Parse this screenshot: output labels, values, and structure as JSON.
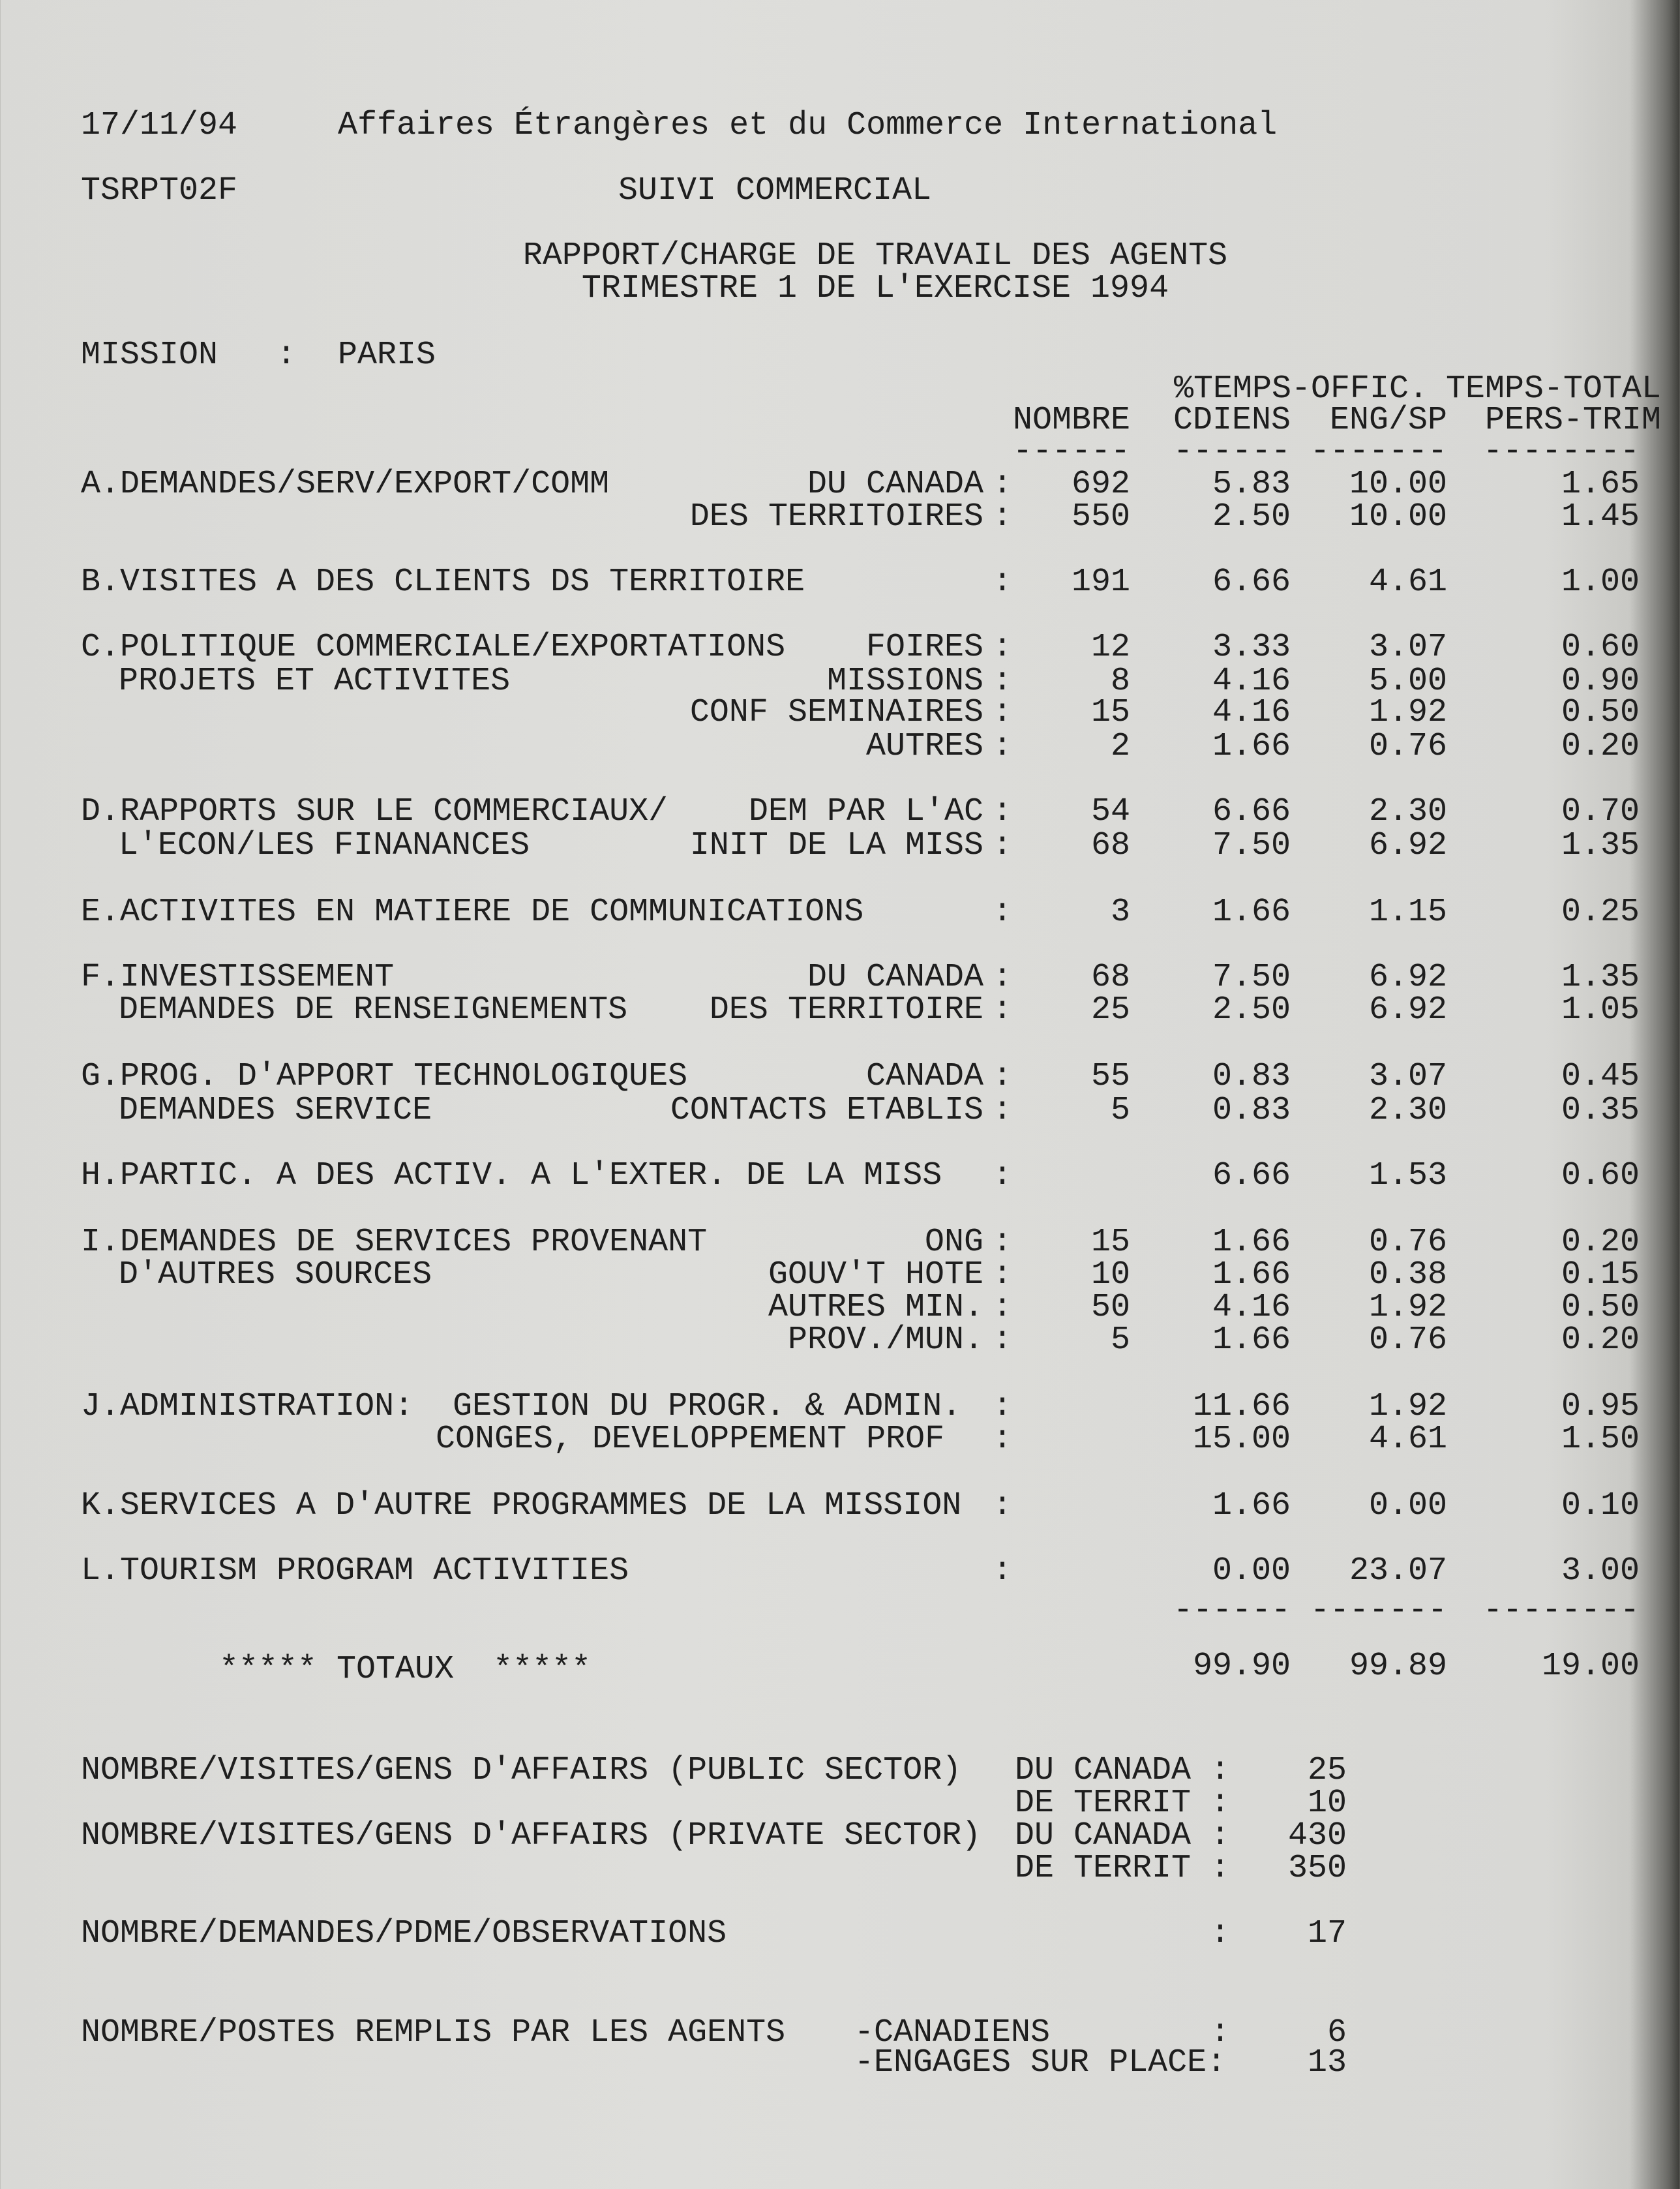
{
  "header": {
    "date": "17/11/94",
    "department": "Affaires Étrangères et du Commerce International",
    "report_code": "TSRPT02F",
    "system": "SUIVI COMMERCIAL",
    "title_line1": "RAPPORT/CHARGE DE TRAVAIL DES AGENTS",
    "title_line2": "TRIMESTRE 1 DE L'EXERCISE 1994",
    "mission_label": "MISSION   :",
    "mission_value": "PARIS"
  },
  "columns": {
    "group1": "%TEMPS-OFFIC.",
    "group2": "TEMPS-TOTAL",
    "nombre": "NOMBRE",
    "cdiens": "CDIENS",
    "engsp": "ENG/SP",
    "pers": "PERS-TRIM",
    "dash6": "------",
    "dash7": "-------",
    "dash8": "--------"
  },
  "rows": [
    {
      "label": "A.DEMANDES/SERV/EXPORT/COMM",
      "sub": "DU CANADA",
      "nombre": "692",
      "cdiens": "5.83",
      "engsp": "10.00",
      "pers": "1.65"
    },
    {
      "label": "",
      "sub": "DES TERRITOIRES",
      "nombre": "550",
      "cdiens": "2.50",
      "engsp": "10.00",
      "pers": "1.45"
    },
    {
      "label": "B.VISITES A DES CLIENTS DS TERRITOIRE",
      "sub": "",
      "nombre": "191",
      "cdiens": "6.66",
      "engsp": "4.61",
      "pers": "1.00"
    },
    {
      "label": "C.POLITIQUE COMMERCIALE/EXPORTATIONS",
      "sub": "FOIRES",
      "nombre": "12",
      "cdiens": "3.33",
      "engsp": "3.07",
      "pers": "0.60"
    },
    {
      "label": "PROJETS ET ACTIVITES",
      "indent": true,
      "sub": "MISSIONS",
      "nombre": "8",
      "cdiens": "4.16",
      "engsp": "5.00",
      "pers": "0.90"
    },
    {
      "label": "",
      "sub": "CONF SEMINAIRES",
      "nombre": "15",
      "cdiens": "4.16",
      "engsp": "1.92",
      "pers": "0.50"
    },
    {
      "label": "",
      "sub": "AUTRES",
      "nombre": "2",
      "cdiens": "1.66",
      "engsp": "0.76",
      "pers": "0.20"
    },
    {
      "label": "D.RAPPORTS SUR LE COMMERCIAUX/",
      "sub": "DEM PAR L'AC",
      "nombre": "54",
      "cdiens": "6.66",
      "engsp": "2.30",
      "pers": "0.70"
    },
    {
      "label": "L'ECON/LES FINANANCES",
      "indent": true,
      "sub": "INIT DE LA MISS",
      "nombre": "68",
      "cdiens": "7.50",
      "engsp": "6.92",
      "pers": "1.35"
    },
    {
      "label": "E.ACTIVITES EN MATIERE DE COMMUNICATIONS",
      "sub": "",
      "nombre": "3",
      "cdiens": "1.66",
      "engsp": "1.15",
      "pers": "0.25"
    },
    {
      "label": "F.INVESTISSEMENT",
      "sub": "DU CANADA",
      "nombre": "68",
      "cdiens": "7.50",
      "engsp": "6.92",
      "pers": "1.35"
    },
    {
      "label": "DEMANDES DE RENSEIGNEMENTS",
      "indent": true,
      "sub": "DES TERRITOIRE",
      "nombre": "25",
      "cdiens": "2.50",
      "engsp": "6.92",
      "pers": "1.05"
    },
    {
      "label": "G.PROG. D'APPORT TECHNOLOGIQUES",
      "sub": "CANADA",
      "nombre": "55",
      "cdiens": "0.83",
      "engsp": "3.07",
      "pers": "0.45"
    },
    {
      "label": "DEMANDES SERVICE",
      "indent": true,
      "sub": "CONTACTS ETABLIS",
      "nombre": "5",
      "cdiens": "0.83",
      "engsp": "2.30",
      "pers": "0.35"
    },
    {
      "label": "H.PARTIC. A DES ACTIV. A L'EXTER. DE LA MISS",
      "sub": "",
      "nombre": "",
      "cdiens": "6.66",
      "engsp": "1.53",
      "pers": "0.60"
    },
    {
      "label": "I.DEMANDES DE SERVICES PROVENANT",
      "sub": "ONG",
      "nombre": "15",
      "cdiens": "1.66",
      "engsp": "0.76",
      "pers": "0.20"
    },
    {
      "label": "D'AUTRES SOURCES",
      "indent": true,
      "sub": "GOUV'T HOTE",
      "nombre": "10",
      "cdiens": "1.66",
      "engsp": "0.38",
      "pers": "0.15"
    },
    {
      "label": "",
      "sub": "AUTRES MIN.",
      "nombre": "50",
      "cdiens": "4.16",
      "engsp": "1.92",
      "pers": "0.50"
    },
    {
      "label": "",
      "sub": "PROV./MUN.",
      "nombre": "5",
      "cdiens": "1.66",
      "engsp": "0.76",
      "pers": "0.20"
    },
    {
      "label": "J.ADMINISTRATION:  GESTION DU PROGR. & ADMIN.",
      "sub": "",
      "nombre": "",
      "cdiens": "11.66",
      "engsp": "1.92",
      "pers": "0.95"
    },
    {
      "label": "CONGES, DEVELOPPEMENT PROF",
      "sub": "",
      "indent2": true,
      "nombre": "",
      "cdiens": "15.00",
      "engsp": "4.61",
      "pers": "1.50"
    },
    {
      "label": "K.SERVICES A D'AUTRE PROGRAMMES DE LA MISSION",
      "sub": "",
      "nombre": "",
      "cdiens": "1.66",
      "engsp": "0.00",
      "pers": "0.10"
    },
    {
      "label": "L.TOURISM PROGRAM ACTIVITIES",
      "sub": "",
      "nombre": "",
      "cdiens": "0.00",
      "engsp": "23.07",
      "pers": "3.00"
    }
  ],
  "totals": {
    "label": "***** TOTAUX  *****",
    "cdiens": "99.90",
    "engsp": "99.89",
    "pers": "19.00"
  },
  "footer": [
    {
      "label": "NOMBRE/VISITES/GENS D'AFFAIRS (PUBLIC SECTOR)",
      "sub": "DU CANADA :",
      "value": "25"
    },
    {
      "label": "",
      "sub": "DE TERRIT :",
      "value": "10"
    },
    {
      "label": "NOMBRE/VISITES/GENS D'AFFAIRS (PRIVATE SECTOR)",
      "sub": "DU CANADA :",
      "value": "430"
    },
    {
      "label": "",
      "sub": "DE TERRIT :",
      "value": "350"
    },
    {
      "label": "NOMBRE/DEMANDES/PDME/OBSERVATIONS",
      "sub": "",
      "colon": ":",
      "value": "17"
    },
    {
      "label": "NOMBRE/POSTES REMPLIS PAR LES AGENTS",
      "sub": "-CANADIENS",
      "colon": ":",
      "value": "6"
    },
    {
      "label": "",
      "sub": "-ENGAGES SUR PLACE:",
      "value": "13"
    }
  ]
}
